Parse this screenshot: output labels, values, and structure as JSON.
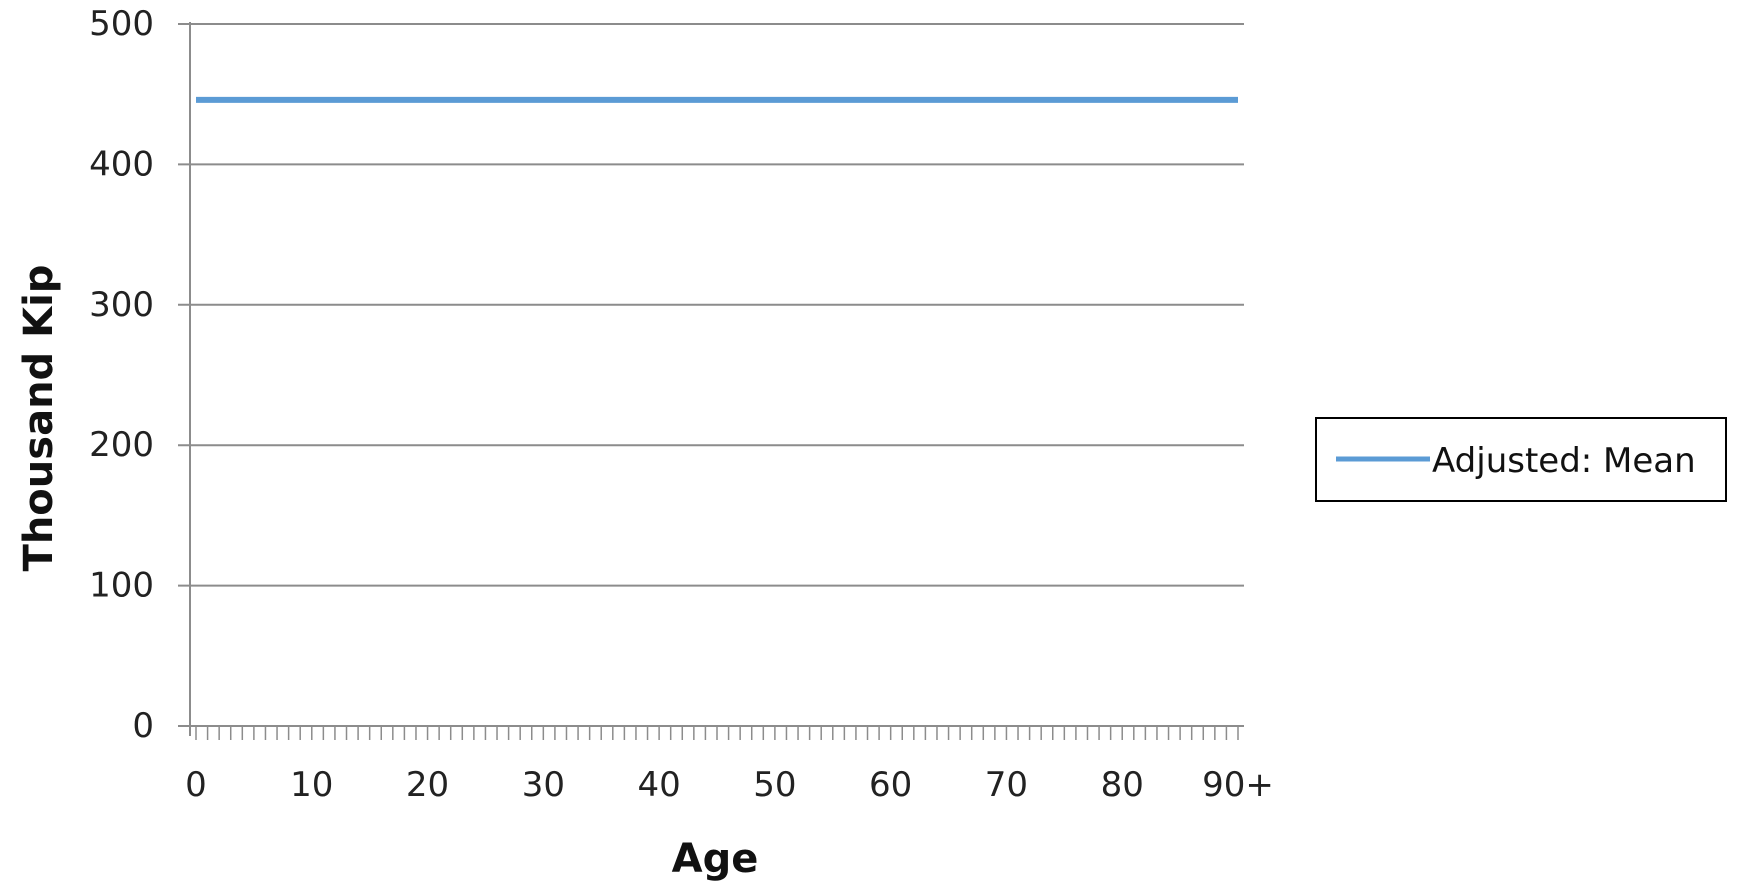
{
  "chart_data": {
    "type": "line",
    "xlabel": "Age",
    "ylabel": "Thousand Kip",
    "x_tick_labels": [
      "0",
      "10",
      "20",
      "30",
      "40",
      "50",
      "60",
      "70",
      "80",
      "90+"
    ],
    "y_ticks": [
      0,
      100,
      200,
      300,
      400,
      500
    ],
    "ylim": [
      0,
      500
    ],
    "xlim": [
      0,
      90
    ],
    "grid": true,
    "legend_position": "right",
    "series": [
      {
        "name": "Adjusted: Mean",
        "color": "#5b9bd5",
        "x": [
          0,
          90
        ],
        "y": [
          446,
          446
        ]
      }
    ]
  }
}
